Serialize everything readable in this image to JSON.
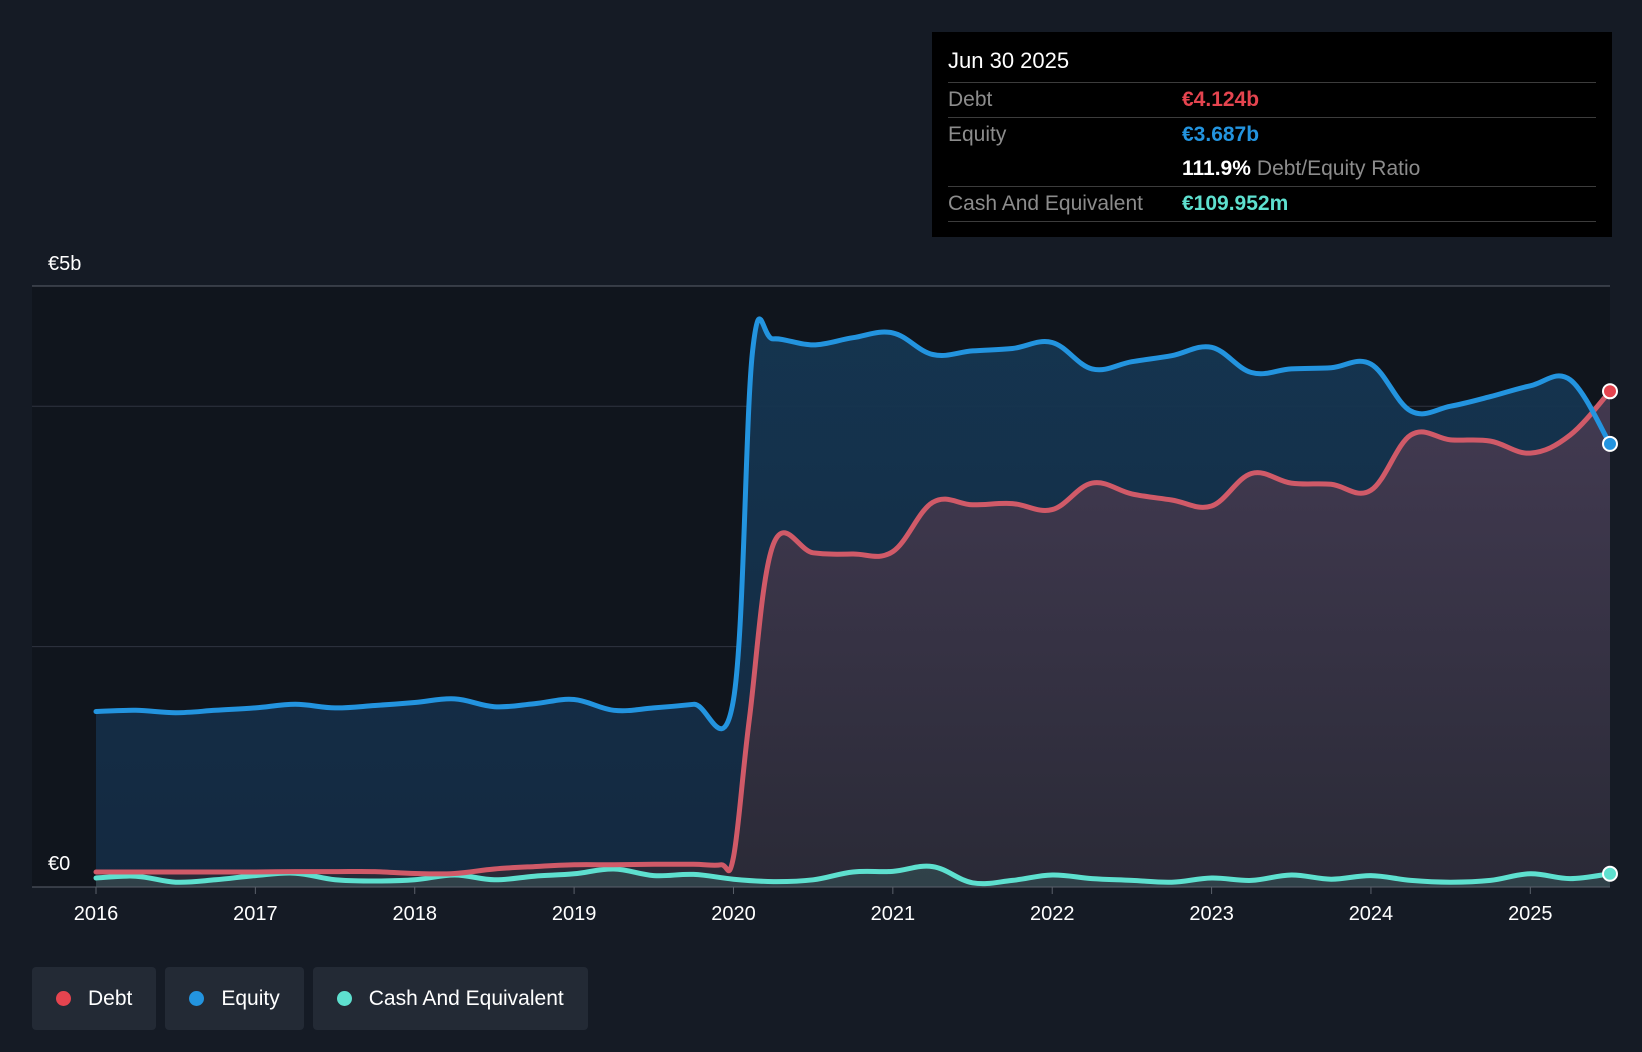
{
  "chart_data": {
    "type": "area",
    "y_axis": {
      "max_label": "€5b",
      "min_label": "€0",
      "ylim": [
        0,
        5000
      ]
    },
    "x_ticks": [
      "2016",
      "2017",
      "2018",
      "2019",
      "2020",
      "2021",
      "2022",
      "2023",
      "2024",
      "2025"
    ],
    "series": [
      {
        "name": "Debt",
        "color": "#e5444f",
        "line_color": "#d05a68",
        "points": [
          [
            2016.0,
            125
          ],
          [
            2016.25,
            125
          ],
          [
            2016.5,
            125
          ],
          [
            2016.75,
            125
          ],
          [
            2017.0,
            125
          ],
          [
            2017.25,
            128
          ],
          [
            2017.5,
            128
          ],
          [
            2017.75,
            128
          ],
          [
            2018.0,
            112
          ],
          [
            2018.25,
            112
          ],
          [
            2018.5,
            150
          ],
          [
            2018.75,
            170
          ],
          [
            2019.0,
            185
          ],
          [
            2019.25,
            185
          ],
          [
            2019.5,
            190
          ],
          [
            2019.75,
            190
          ],
          [
            2019.92,
            185
          ],
          [
            2020.0,
            250
          ],
          [
            2020.1,
            1400
          ],
          [
            2020.25,
            2850
          ],
          [
            2020.5,
            2780
          ],
          [
            2020.75,
            2770
          ],
          [
            2021.0,
            2790
          ],
          [
            2021.25,
            3200
          ],
          [
            2021.5,
            3180
          ],
          [
            2021.75,
            3190
          ],
          [
            2022.0,
            3140
          ],
          [
            2022.25,
            3360
          ],
          [
            2022.5,
            3270
          ],
          [
            2022.75,
            3220
          ],
          [
            2023.0,
            3170
          ],
          [
            2023.25,
            3440
          ],
          [
            2023.5,
            3360
          ],
          [
            2023.75,
            3350
          ],
          [
            2024.0,
            3300
          ],
          [
            2024.25,
            3760
          ],
          [
            2024.5,
            3720
          ],
          [
            2024.75,
            3710
          ],
          [
            2025.0,
            3610
          ],
          [
            2025.25,
            3760
          ],
          [
            2025.5,
            4124
          ]
        ]
      },
      {
        "name": "Equity",
        "color": "#2394df",
        "line_color": "#2394df",
        "points": [
          [
            2016.0,
            1460
          ],
          [
            2016.25,
            1470
          ],
          [
            2016.5,
            1450
          ],
          [
            2016.75,
            1470
          ],
          [
            2017.0,
            1490
          ],
          [
            2017.25,
            1520
          ],
          [
            2017.5,
            1490
          ],
          [
            2017.75,
            1510
          ],
          [
            2018.0,
            1535
          ],
          [
            2018.25,
            1565
          ],
          [
            2018.5,
            1500
          ],
          [
            2018.75,
            1525
          ],
          [
            2019.0,
            1560
          ],
          [
            2019.25,
            1470
          ],
          [
            2019.5,
            1490
          ],
          [
            2019.75,
            1520
          ],
          [
            2020.0,
            1560
          ],
          [
            2020.12,
            4460
          ],
          [
            2020.25,
            4560
          ],
          [
            2020.5,
            4510
          ],
          [
            2020.75,
            4570
          ],
          [
            2021.0,
            4610
          ],
          [
            2021.25,
            4430
          ],
          [
            2021.5,
            4460
          ],
          [
            2021.75,
            4480
          ],
          [
            2022.0,
            4530
          ],
          [
            2022.25,
            4310
          ],
          [
            2022.5,
            4370
          ],
          [
            2022.75,
            4420
          ],
          [
            2023.0,
            4490
          ],
          [
            2023.25,
            4280
          ],
          [
            2023.5,
            4310
          ],
          [
            2023.75,
            4320
          ],
          [
            2024.0,
            4350
          ],
          [
            2024.25,
            3960
          ],
          [
            2024.5,
            4000
          ],
          [
            2024.75,
            4080
          ],
          [
            2025.0,
            4170
          ],
          [
            2025.25,
            4220
          ],
          [
            2025.5,
            3687
          ]
        ]
      },
      {
        "name": "Cash And Equivalent",
        "color": "#5ee0cf",
        "line_color": "#5ee0cf",
        "points": [
          [
            2016.0,
            75
          ],
          [
            2016.25,
            90
          ],
          [
            2016.5,
            40
          ],
          [
            2016.75,
            60
          ],
          [
            2017.0,
            95
          ],
          [
            2017.25,
            115
          ],
          [
            2017.5,
            60
          ],
          [
            2017.75,
            50
          ],
          [
            2018.0,
            60
          ],
          [
            2018.25,
            100
          ],
          [
            2018.5,
            60
          ],
          [
            2018.75,
            90
          ],
          [
            2019.0,
            110
          ],
          [
            2019.25,
            150
          ],
          [
            2019.5,
            95
          ],
          [
            2019.75,
            105
          ],
          [
            2020.0,
            65
          ],
          [
            2020.25,
            45
          ],
          [
            2020.5,
            60
          ],
          [
            2020.75,
            125
          ],
          [
            2021.0,
            130
          ],
          [
            2021.25,
            170
          ],
          [
            2021.5,
            35
          ],
          [
            2021.75,
            55
          ],
          [
            2022.0,
            100
          ],
          [
            2022.25,
            70
          ],
          [
            2022.5,
            55
          ],
          [
            2022.75,
            40
          ],
          [
            2023.0,
            75
          ],
          [
            2023.25,
            55
          ],
          [
            2023.5,
            100
          ],
          [
            2023.75,
            65
          ],
          [
            2024.0,
            95
          ],
          [
            2024.25,
            55
          ],
          [
            2024.5,
            40
          ],
          [
            2024.75,
            55
          ],
          [
            2025.0,
            110
          ],
          [
            2025.25,
            70
          ],
          [
            2025.5,
            110
          ]
        ]
      }
    ]
  },
  "tooltip": {
    "date": "Jun 30 2025",
    "debt_label": "Debt",
    "debt_value": "€4.124b",
    "debt_color": "#e5444f",
    "equity_label": "Equity",
    "equity_value": "€3.687b",
    "equity_color": "#2394df",
    "ratio_value": "111.9%",
    "ratio_label": "Debt/Equity Ratio",
    "cash_label": "Cash And Equivalent",
    "cash_value": "€109.952m",
    "cash_color": "#5ee0cf"
  },
  "legend": {
    "debt": "Debt",
    "debt_color": "#e5444f",
    "equity": "Equity",
    "equity_color": "#2394df",
    "cash": "Cash And Equivalent",
    "cash_color": "#5ee0cf"
  },
  "colors": {
    "background": "#151b25",
    "plot_background": "#10151d",
    "grid": "#3a404a",
    "tick_text": "#ffffff"
  }
}
